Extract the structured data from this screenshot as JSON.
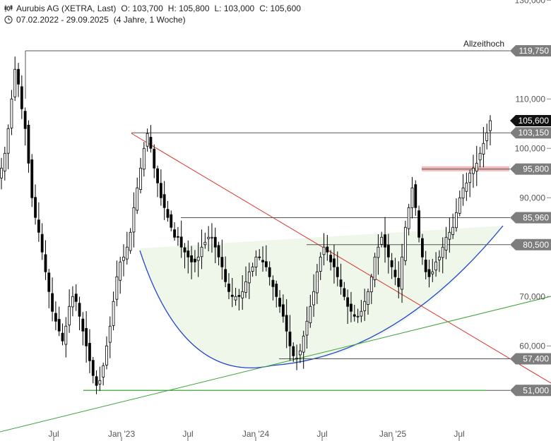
{
  "header": {
    "title": "Aurubis AG (XETRA, Last)",
    "open": "O: 103,700",
    "high": "H: 105,800",
    "low": "L: 103,000",
    "close": "C: 105,600",
    "range": "07.02.2022 - 29.09.2025",
    "period": "(4 Jahre, 1 Woche)",
    "chart_icon": "candlestick-icon",
    "clock_icon": "clock-icon"
  },
  "colors": {
    "candle": "#000000",
    "resistance_line": "#d9332a",
    "support_line": "#3fa33a",
    "arc": "#2244cc",
    "zone_fill": "#eef7ea",
    "level_band": "#f2b8b8",
    "label_gray": "#7d7d7d",
    "label_black": "#111111"
  },
  "chart_data": {
    "type": "candlestick",
    "title": "Aurubis AG (XETRA, Last)",
    "x_range": [
      "2022-02-07",
      "2025-09-29"
    ],
    "x_ticks": [
      "Jul",
      "Jan '23",
      "Jul",
      "Jan '24",
      "Jul",
      "Jan '25",
      "Jul"
    ],
    "y_ticks": [
      "130,000",
      "110,000",
      "100,000",
      "90,000",
      "70,000",
      "60,000"
    ],
    "ylim": [
      47.5,
      130
    ],
    "grid": false,
    "levels": [
      {
        "value": 119.75,
        "label": "119,750",
        "style": "gray"
      },
      {
        "value": 105.6,
        "label": "105,600",
        "style": "black"
      },
      {
        "value": 103.15,
        "label": "103,150",
        "style": "gray"
      },
      {
        "value": 95.8,
        "label": "95,800",
        "style": "gray"
      },
      {
        "value": 85.96,
        "label": "85,960",
        "style": "gray"
      },
      {
        "value": 80.5,
        "label": "80,500",
        "style": "gray"
      },
      {
        "value": 57.4,
        "label": "57,400",
        "style": "gray"
      },
      {
        "value": 51.0,
        "label": "51,000",
        "style": "gray"
      }
    ],
    "annotations": [
      {
        "text": "Allzeithoch",
        "value": 119.75
      }
    ],
    "series_weekly_close": [
      96,
      99,
      104,
      110,
      116,
      113,
      108,
      104,
      97,
      90,
      86,
      83,
      79,
      75,
      71,
      67,
      65,
      63,
      61,
      64,
      68,
      70,
      69,
      66,
      63,
      60,
      57,
      54,
      52,
      53,
      56,
      60,
      64,
      69,
      74,
      77,
      78,
      80,
      83,
      88,
      92,
      96,
      100,
      103,
      100,
      96,
      93,
      90,
      88,
      86,
      84,
      82,
      82,
      80,
      79,
      78,
      77,
      77,
      78,
      80,
      81,
      82,
      82,
      80,
      78,
      76,
      73,
      71,
      70,
      70,
      70,
      71,
      73,
      75,
      76,
      78,
      78,
      77,
      76,
      74,
      72,
      70,
      68,
      66,
      63,
      60,
      58,
      57.5,
      59,
      62,
      65,
      68,
      71,
      75,
      78,
      80,
      79,
      77,
      76,
      74,
      72,
      70,
      68,
      67,
      66,
      66,
      67,
      69,
      71,
      74,
      78,
      80,
      82,
      80,
      78,
      76,
      74,
      72,
      78,
      84,
      88,
      92,
      88,
      82,
      78,
      75,
      74,
      75,
      77,
      78,
      80,
      82,
      83,
      84,
      87,
      90,
      92,
      93,
      95,
      96,
      97,
      99,
      101,
      103.15,
      105.6
    ]
  },
  "axis_labels": {
    "x": [
      "Jul",
      "Jan '23",
      "Jul",
      "Jan '24",
      "Jul",
      "Jan '25",
      "Jul"
    ]
  }
}
